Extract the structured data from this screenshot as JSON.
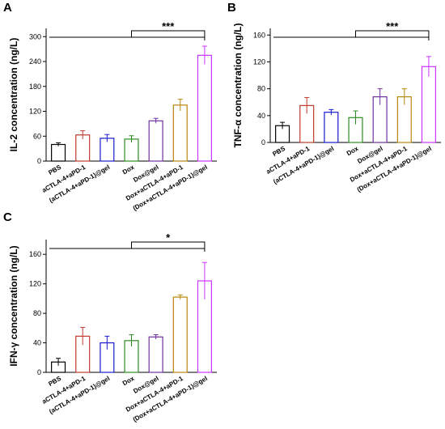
{
  "chart_data": [
    {
      "type": "bar",
      "panel": "A",
      "ylabel": "IL-2 concentration (ng/L)",
      "categories": [
        "PBS",
        "aCTLA-4+aPD-1",
        "(aCTLA-4+aPD-1)@gel",
        "Dox",
        "Dox@gel",
        "Dox+aCTLA-4+aPD-1",
        "(Dox+aCTLA-4+aPD-1)@gel"
      ],
      "values": [
        40,
        63,
        55,
        53,
        97,
        135,
        255
      ],
      "errors": [
        4,
        10,
        9,
        8,
        6,
        14,
        22
      ],
      "colors": [
        "#000000",
        "#c0392b",
        "#1a1acc",
        "#2e8b22",
        "#7030a0",
        "#b8860b",
        "#cc33ff"
      ],
      "ylim": [
        0,
        320
      ],
      "yticks": [
        0,
        60,
        120,
        180,
        240,
        300
      ],
      "significance": "***"
    },
    {
      "type": "bar",
      "panel": "B",
      "ylabel": "TNF-α concentration (ng/L)",
      "categories": [
        "PBS",
        "aCTLA-4+aPD-1",
        "(aCTLA-4+aPD-1)@gel",
        "Dox",
        "Dox@gel",
        "Dox+aCTLA-4+aPD-1",
        "(Dox+aCTLA-4+aPD-1)@gel"
      ],
      "values": [
        25,
        55,
        45,
        37,
        68,
        68,
        113
      ],
      "errors": [
        5,
        12,
        4,
        10,
        12,
        12,
        15
      ],
      "colors": [
        "#000000",
        "#c0392b",
        "#1a1acc",
        "#2e8b22",
        "#7030a0",
        "#b8860b",
        "#cc33ff"
      ],
      "ylim": [
        0,
        170
      ],
      "yticks": [
        0,
        40,
        80,
        120,
        160
      ],
      "significance": "***"
    },
    {
      "type": "bar",
      "panel": "C",
      "ylabel": "IFN-γ concentration (ng/L)",
      "categories": [
        "PBS",
        "aCTLA-4+aPD-1",
        "(aCTLA-4+aPD-1)@gel",
        "Dox",
        "Dox@gel",
        "Dox+aCTLA-4+aPD-1",
        "(Dox+aCTLA-4+aPD-1)@gel"
      ],
      "values": [
        14,
        49,
        40,
        43,
        48,
        102,
        124
      ],
      "errors": [
        5,
        12,
        9,
        8,
        3,
        3,
        25
      ],
      "colors": [
        "#000000",
        "#c0392b",
        "#1a1acc",
        "#2e8b22",
        "#7030a0",
        "#b8860b",
        "#cc33ff"
      ],
      "ylim": [
        0,
        180
      ],
      "yticks": [
        0,
        40,
        80,
        120,
        160
      ],
      "significance": "*"
    }
  ]
}
